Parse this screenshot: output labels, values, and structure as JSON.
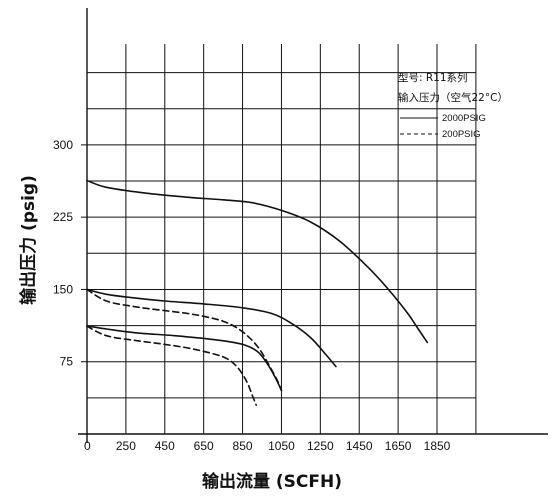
{
  "chart_data": {
    "type": "line",
    "xlabel": "输出流量 (SCFH)",
    "ylabel": "输出压力 (psig)",
    "x_ticks": [
      "0",
      "250",
      "450",
      "650",
      "850",
      "1050",
      "1250",
      "1450",
      "1650",
      "1850"
    ],
    "y_ticks": [
      "75",
      "150",
      "225",
      "300"
    ],
    "xlim": [
      0,
      2200
    ],
    "ylim": [
      0,
      405
    ],
    "grid": true,
    "legend": {
      "placement": "top-right",
      "title_line1": "型号: R11系列",
      "title_line2": "输入压力（空气22°C）",
      "entries": [
        {
          "label": "2000PSIG",
          "style": "solid"
        },
        {
          "label": "200PSIG",
          "style": "dashed"
        }
      ]
    },
    "series": [
      {
        "inlet": "2000PSIG",
        "style": "solid",
        "points": [
          [
            0,
            263
          ],
          [
            100,
            256
          ],
          [
            300,
            250
          ],
          [
            500,
            246
          ],
          [
            700,
            243
          ],
          [
            850,
            240
          ],
          [
            1000,
            232
          ],
          [
            1150,
            220
          ],
          [
            1300,
            200
          ],
          [
            1450,
            172
          ],
          [
            1550,
            150
          ],
          [
            1650,
            125
          ],
          [
            1700,
            110
          ],
          [
            1750,
            95
          ]
        ]
      },
      {
        "inlet": "2000PSIG",
        "style": "solid",
        "points": [
          [
            0,
            150
          ],
          [
            100,
            145
          ],
          [
            250,
            141
          ],
          [
            400,
            138
          ],
          [
            600,
            135
          ],
          [
            800,
            131
          ],
          [
            950,
            125
          ],
          [
            1050,
            115
          ],
          [
            1150,
            100
          ],
          [
            1230,
            82
          ],
          [
            1280,
            70
          ]
        ]
      },
      {
        "inlet": "2000PSIG",
        "style": "solid",
        "points": [
          [
            0,
            112
          ],
          [
            100,
            109
          ],
          [
            250,
            105
          ],
          [
            450,
            102
          ],
          [
            650,
            98
          ],
          [
            800,
            93
          ],
          [
            880,
            85
          ],
          [
            930,
            72
          ],
          [
            970,
            58
          ],
          [
            1000,
            45
          ]
        ]
      },
      {
        "inlet": "200PSIG",
        "style": "dashed",
        "points": [
          [
            0,
            150
          ],
          [
            100,
            138
          ],
          [
            250,
            132
          ],
          [
            400,
            128
          ],
          [
            550,
            124
          ],
          [
            700,
            117
          ],
          [
            800,
            106
          ],
          [
            880,
            90
          ],
          [
            940,
            70
          ],
          [
            980,
            55
          ],
          [
            1000,
            45
          ]
        ]
      },
      {
        "inlet": "200PSIG",
        "style": "dashed",
        "points": [
          [
            0,
            112
          ],
          [
            100,
            102
          ],
          [
            250,
            97
          ],
          [
            400,
            93
          ],
          [
            550,
            88
          ],
          [
            700,
            80
          ],
          [
            770,
            70
          ],
          [
            820,
            55
          ],
          [
            850,
            40
          ],
          [
            870,
            30
          ]
        ]
      }
    ]
  }
}
